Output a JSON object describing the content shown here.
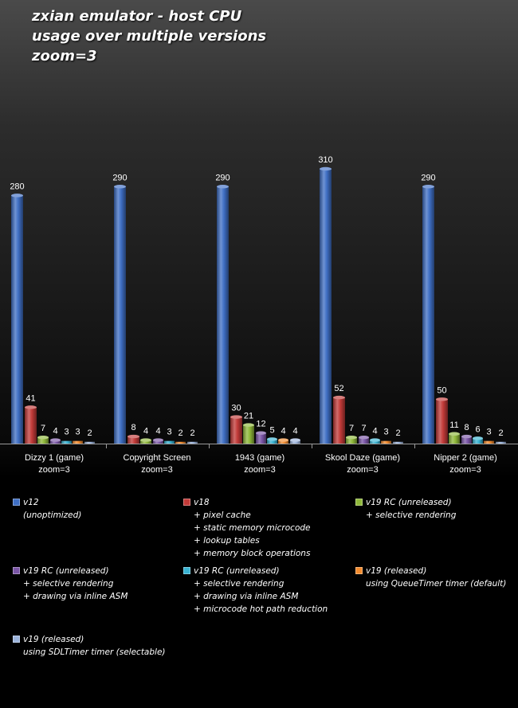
{
  "chart_data": {
    "type": "bar",
    "title_lines": [
      "zxian emulator  - host CPU",
      "usage over multiple  versions",
      "zoom=3"
    ],
    "categories": [
      {
        "line1": "Dizzy 1 (game)",
        "line2": "zoom=3"
      },
      {
        "line1": "Copyright Screen",
        "line2": "zoom=3"
      },
      {
        "line1": "1943 (game)",
        "line2": "zoom=3"
      },
      {
        "line1": "Skool Daze (game)",
        "line2": "zoom=3"
      },
      {
        "line1": "Nipper 2 (game)",
        "line2": "zoom=3"
      }
    ],
    "ylim": [
      0,
      310
    ],
    "grid": false,
    "legend_position": "bottom",
    "series": [
      {
        "name": "v12",
        "legend_lines": [
          "v12",
          "(unoptimized)"
        ],
        "color": "#3f6fc4",
        "values": [
          280,
          290,
          290,
          310,
          290
        ]
      },
      {
        "name": "v18",
        "legend_lines": [
          "v18",
          "+ pixel cache",
          "+ static memory  microcode",
          "+ lookup tables",
          "+ memory  block operations"
        ],
        "color": "#c23a38",
        "values": [
          41,
          8,
          30,
          52,
          50
        ]
      },
      {
        "name": "v19 RC (unreleased)",
        "legend_lines": [
          "v19 RC (unreleased)",
          "+ selective  rendering"
        ],
        "color": "#8fb83a",
        "values": [
          7,
          4,
          21,
          7,
          11
        ]
      },
      {
        "name": "v19 RC (unreleased)",
        "legend_lines": [
          "v19 RC (unreleased)",
          "+ selective  rendering",
          "+ drawing via inline ASM"
        ],
        "color": "#7a55a6",
        "values": [
          4,
          4,
          12,
          7,
          8
        ]
      },
      {
        "name": "v19 RC (unreleased)",
        "legend_lines": [
          "v19 RC (unreleased)",
          "+ selective  rendering",
          "+ drawing via inline ASM",
          "+ microcode  hot path reduction"
        ],
        "color": "#39b3d2",
        "values": [
          3,
          3,
          5,
          4,
          6
        ]
      },
      {
        "name": "v19 (released)",
        "legend_lines": [
          "v19 (released)",
          "using QueueTimer  timer  (default)"
        ],
        "color": "#f28b2e",
        "values": [
          3,
          2,
          4,
          3,
          3
        ]
      },
      {
        "name": "v19 (released)",
        "legend_lines": [
          "v19 (released)",
          "using SDLTimer  timer  (selectable)"
        ],
        "color": "#9cb4dc",
        "values": [
          2,
          2,
          4,
          2,
          2
        ]
      }
    ]
  }
}
